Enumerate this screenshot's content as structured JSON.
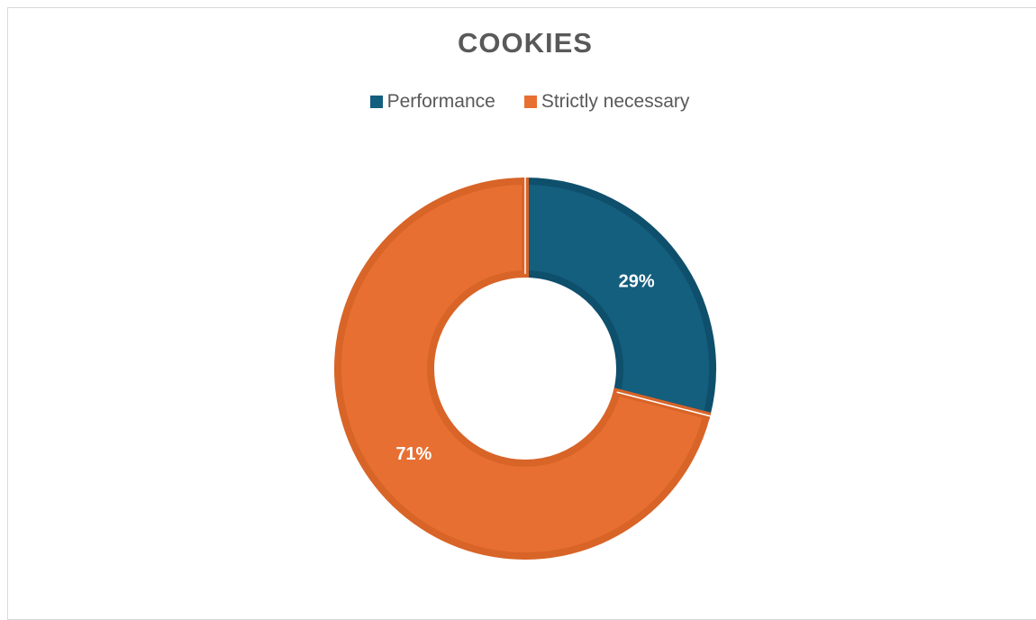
{
  "chart_data": {
    "type": "pie",
    "subtype": "donut",
    "title": "COOKIES",
    "legend_position": "top",
    "categories": [
      "Performance",
      "Strictly necessary"
    ],
    "values": [
      29,
      71
    ],
    "data_labels": [
      "29%",
      "71%"
    ],
    "colors": [
      "#145e7e",
      "#e86f32"
    ],
    "edge_colors": [
      "#0e4f6c",
      "#d86428"
    ]
  }
}
